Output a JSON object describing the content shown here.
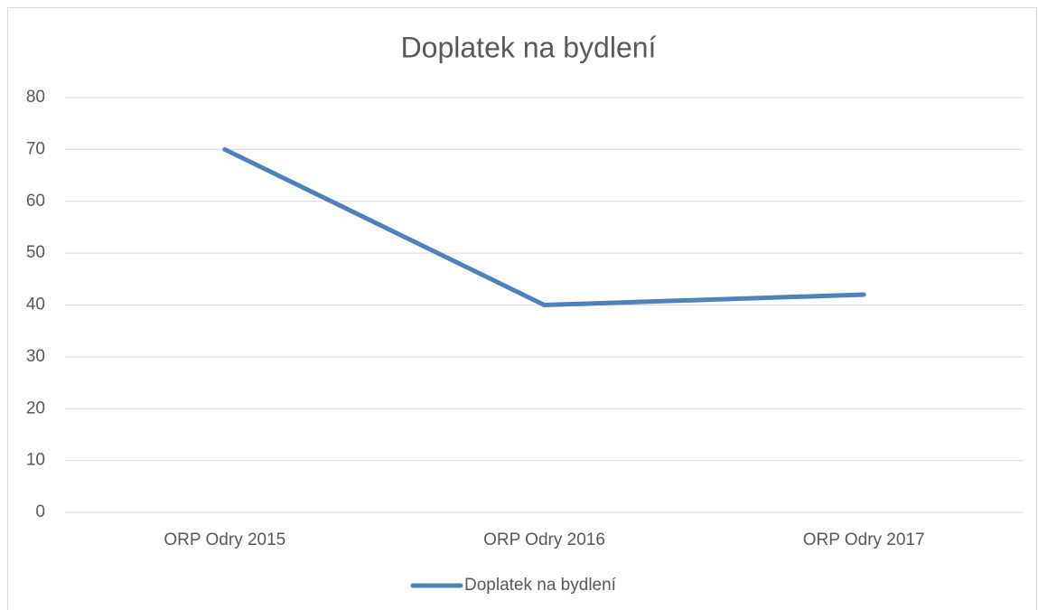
{
  "chart_data": {
    "type": "line",
    "title": "Doplatek na bydlení",
    "categories": [
      "ORP Odry 2015",
      "ORP Odry 2016",
      "ORP Odry 2017"
    ],
    "series": [
      {
        "name": "Doplatek na bydlení",
        "color": "#4f81bd",
        "values": [
          70,
          40,
          42
        ]
      }
    ],
    "ylim": [
      0,
      80
    ],
    "yticks": [
      0,
      10,
      20,
      30,
      40,
      50,
      60,
      70,
      80
    ],
    "grid": true,
    "legend": "bottom"
  }
}
